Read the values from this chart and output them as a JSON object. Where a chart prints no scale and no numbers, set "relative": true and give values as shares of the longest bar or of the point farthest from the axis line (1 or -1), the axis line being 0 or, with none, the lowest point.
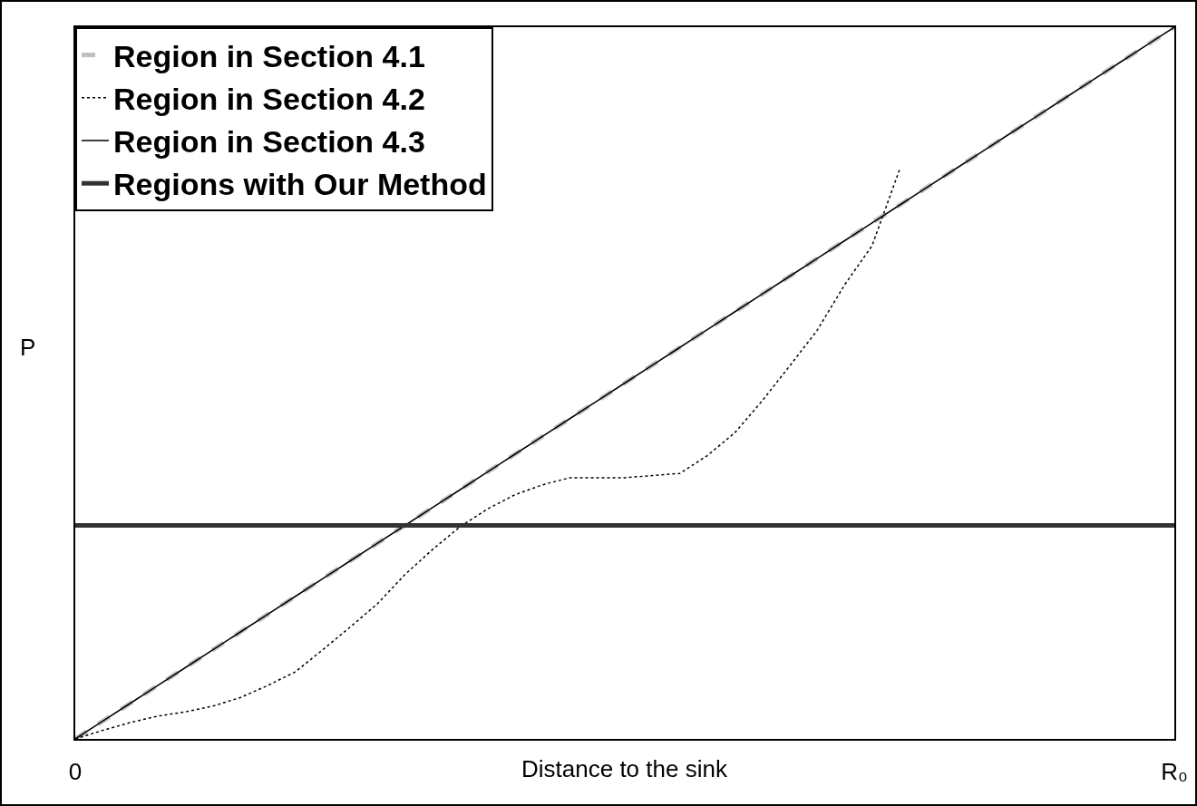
{
  "chart_data": {
    "type": "line",
    "xlabel": "Distance to the sink",
    "ylabel": "P",
    "relative": true,
    "grid": false,
    "legend": "top left",
    "marker": "none",
    "categories": [
      "0",
      null,
      null,
      null,
      null,
      null,
      null,
      null,
      null,
      null,
      null,
      null,
      null,
      null,
      null,
      null,
      null,
      null,
      null,
      null,
      null,
      null,
      null,
      null,
      null,
      null,
      null,
      null,
      null,
      null,
      null,
      null,
      null,
      null,
      null,
      null,
      null,
      null,
      null,
      null,
      "R₀"
    ],
    "series": [
      {
        "name": "Region in Section 4.1",
        "color": "#c0c0c0",
        "line_style": "dashed",
        "values": [
          0,
          0.025,
          0.05,
          0.075,
          0.1,
          0.125,
          0.15,
          0.175,
          0.2,
          0.225,
          0.25,
          0.275,
          0.3,
          0.325,
          0.35,
          0.375,
          0.4,
          0.425,
          0.45,
          0.475,
          0.5,
          0.525,
          0.55,
          0.575,
          0.6,
          0.625,
          0.65,
          0.675,
          0.7,
          0.725,
          0.75,
          0.775,
          0.8,
          0.825,
          0.85,
          0.875,
          0.9,
          0.925,
          0.95,
          0.975,
          1
        ]
      },
      {
        "name": "Region in Section 4.2",
        "color": "#000000",
        "line_style": "dotted",
        "values": [
          0,
          0.012,
          0.023,
          0.032,
          0.038,
          0.046,
          0.058,
          0.075,
          0.094,
          0.125,
          0.157,
          0.19,
          0.231,
          0.266,
          0.298,
          0.323,
          0.343,
          0.357,
          0.367,
          0.367,
          0.367,
          0.37,
          0.373,
          0.398,
          0.43,
          0.475,
          0.524,
          0.574,
          0.638,
          0.693,
          0.8,
          null,
          null,
          null,
          null,
          null,
          null,
          null,
          null,
          null,
          null
        ]
      },
      {
        "name": "Region in Section 4.3",
        "color": "#000000",
        "line_style": "solid",
        "values": [
          0,
          0.025,
          0.05,
          0.075,
          0.1,
          0.125,
          0.15,
          0.175,
          0.2,
          0.225,
          0.25,
          0.275,
          0.3,
          0.325,
          0.35,
          0.375,
          0.4,
          0.425,
          0.45,
          0.475,
          0.5,
          0.525,
          0.55,
          0.575,
          0.6,
          0.625,
          0.65,
          0.675,
          0.7,
          0.725,
          0.75,
          0.775,
          0.8,
          0.825,
          0.85,
          0.875,
          0.9,
          0.925,
          0.95,
          0.975,
          1
        ]
      },
      {
        "name": "Regions with Our Method",
        "color": "#333333",
        "line_style": "solid",
        "values": [
          0.3,
          0.3,
          0.3,
          0.3,
          0.3,
          0.3,
          0.3,
          0.3,
          0.3,
          0.3,
          0.3,
          0.3,
          0.3,
          0.3,
          0.3,
          0.3,
          0.3,
          0.3,
          0.3,
          0.3,
          0.3,
          0.3,
          0.3,
          0.3,
          0.3,
          0.3,
          0.3,
          0.3,
          0.3,
          0.3,
          0.3,
          0.3,
          0.3,
          0.3,
          0.3,
          0.3,
          0.3,
          0.3,
          0.3,
          0.3,
          0.3
        ]
      }
    ]
  }
}
